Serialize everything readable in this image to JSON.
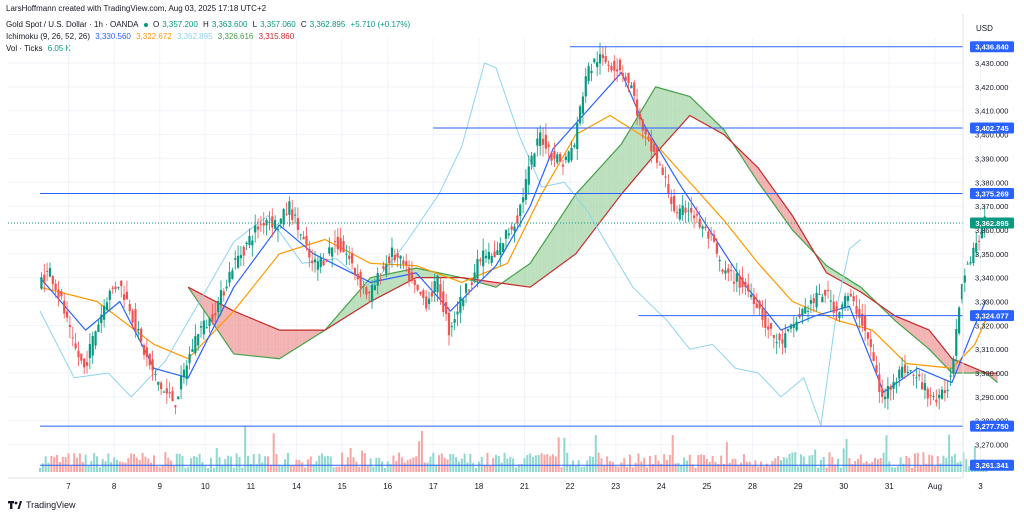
{
  "header": {
    "credit": "LarsHoffmann created with TradingView.com, Aug 03, 2025 17:18 UTC+2",
    "symbol": "Gold Spot / U.S. Dollar · 1h · OANDA",
    "ohlc": {
      "o_label": "O",
      "o": "3,357.200",
      "h_label": "H",
      "h": "3,363.600",
      "l_label": "L",
      "l": "3,357.060",
      "c_label": "C",
      "c": "3,362.895",
      "change": "+5.710 (+0.17%)"
    },
    "ichimoku": {
      "label": "Ichimoku (9, 26, 52, 26)",
      "v1": "3,330.560",
      "v2": "3,322.672",
      "v3": "3,362.895",
      "v4": "3,326.616",
      "v5": "3,315.860"
    },
    "volume": {
      "label": "Vol · Ticks",
      "value": "6.05 K"
    },
    "currency": "USD",
    "brand": "TradingView"
  },
  "colors": {
    "up": "#089981",
    "down": "#ef5350",
    "tenkan": "#2962ff",
    "kijun": "#ff9800",
    "chikou": "#8fd4ec",
    "span_a": "#43a047",
    "span_b": "#c62828",
    "cloud_up": "#a5d6a7",
    "cloud_down": "#ef9a9a",
    "level": "#2962ff",
    "vol_up": "#8ed8cf",
    "vol_down": "#f7a6a4",
    "grid": "#f0f3fa"
  },
  "chart_data": {
    "type": "candlestick",
    "instrument": "Gold Spot / U.S. Dollar",
    "timeframe": "1h",
    "y_axis": {
      "ticks": [
        3270,
        3280,
        3290,
        3300,
        3310,
        3320,
        3330,
        3340,
        3350,
        3360,
        3370,
        3380,
        3390,
        3400,
        3410,
        3420,
        3430
      ],
      "range": [
        3258.5,
        3440.5
      ]
    },
    "x_axis": {
      "ticks": [
        {
          "label": "7",
          "slot": 5
        },
        {
          "label": "8",
          "slot": 13
        },
        {
          "label": "9",
          "slot": 21
        },
        {
          "label": "10",
          "slot": 29
        },
        {
          "label": "11",
          "slot": 37
        },
        {
          "label": "14",
          "slot": 45
        },
        {
          "label": "15",
          "slot": 53
        },
        {
          "label": "16",
          "slot": 61
        },
        {
          "label": "17",
          "slot": 69
        },
        {
          "label": "18",
          "slot": 77
        },
        {
          "label": "21",
          "slot": 85
        },
        {
          "label": "22",
          "slot": 93
        },
        {
          "label": "23",
          "slot": 101
        },
        {
          "label": "24",
          "slot": 109
        },
        {
          "label": "25",
          "slot": 117
        },
        {
          "label": "28",
          "slot": 125
        },
        {
          "label": "29",
          "slot": 133
        },
        {
          "label": "30",
          "slot": 141
        },
        {
          "label": "31",
          "slot": 149
        },
        {
          "label": "Aug",
          "slot": 157
        },
        {
          "label": "3",
          "slot": 165
        }
      ]
    },
    "close_path": [
      [
        0,
        3338
      ],
      [
        2,
        3343
      ],
      [
        4,
        3330
      ],
      [
        6,
        3312
      ],
      [
        8,
        3302
      ],
      [
        10,
        3318
      ],
      [
        12,
        3332
      ],
      [
        14,
        3338
      ],
      [
        16,
        3328
      ],
      [
        18,
        3312
      ],
      [
        20,
        3300
      ],
      [
        22,
        3292
      ],
      [
        24,
        3288
      ],
      [
        26,
        3304
      ],
      [
        28,
        3318
      ],
      [
        30,
        3322
      ],
      [
        32,
        3332
      ],
      [
        34,
        3345
      ],
      [
        36,
        3352
      ],
      [
        38,
        3360
      ],
      [
        40,
        3365
      ],
      [
        42,
        3362
      ],
      [
        44,
        3370
      ],
      [
        46,
        3358
      ],
      [
        48,
        3345
      ],
      [
        50,
        3348
      ],
      [
        52,
        3355
      ],
      [
        54,
        3350
      ],
      [
        56,
        3340
      ],
      [
        58,
        3332
      ],
      [
        60,
        3342
      ],
      [
        62,
        3350
      ],
      [
        64,
        3345
      ],
      [
        66,
        3335
      ],
      [
        68,
        3330
      ],
      [
        70,
        3338
      ],
      [
        72,
        3318
      ],
      [
        74,
        3330
      ],
      [
        76,
        3340
      ],
      [
        78,
        3350
      ],
      [
        80,
        3348
      ],
      [
        82,
        3358
      ],
      [
        84,
        3365
      ],
      [
        86,
        3385
      ],
      [
        88,
        3400
      ],
      [
        90,
        3392
      ],
      [
        92,
        3388
      ],
      [
        94,
        3396
      ],
      [
        96,
        3425
      ],
      [
        98,
        3432
      ],
      [
        100,
        3430
      ],
      [
        102,
        3428
      ],
      [
        104,
        3420
      ],
      [
        106,
        3400
      ],
      [
        108,
        3392
      ],
      [
        110,
        3380
      ],
      [
        112,
        3365
      ],
      [
        114,
        3370
      ],
      [
        116,
        3362
      ],
      [
        118,
        3356
      ],
      [
        120,
        3342
      ],
      [
        122,
        3340
      ],
      [
        124,
        3336
      ],
      [
        126,
        3330
      ],
      [
        128,
        3318
      ],
      [
        130,
        3312
      ],
      [
        132,
        3318
      ],
      [
        134,
        3326
      ],
      [
        136,
        3330
      ],
      [
        138,
        3334
      ],
      [
        140,
        3326
      ],
      [
        142,
        3332
      ],
      [
        144,
        3325
      ],
      [
        146,
        3310
      ],
      [
        148,
        3288
      ],
      [
        150,
        3298
      ],
      [
        152,
        3302
      ],
      [
        154,
        3298
      ],
      [
        156,
        3292
      ],
      [
        158,
        3288
      ],
      [
        160,
        3298
      ],
      [
        162,
        3340
      ],
      [
        164,
        3352
      ],
      [
        166,
        3362.895
      ]
    ],
    "tenkan_path": [
      [
        0,
        3340
      ],
      [
        8,
        3318
      ],
      [
        14,
        3330
      ],
      [
        20,
        3302
      ],
      [
        26,
        3298
      ],
      [
        34,
        3336
      ],
      [
        42,
        3362
      ],
      [
        48,
        3350
      ],
      [
        58,
        3338
      ],
      [
        66,
        3342
      ],
      [
        72,
        3326
      ],
      [
        80,
        3345
      ],
      [
        86,
        3370
      ],
      [
        90,
        3394
      ],
      [
        96,
        3410
      ],
      [
        102,
        3426
      ],
      [
        106,
        3404
      ],
      [
        112,
        3380
      ],
      [
        118,
        3358
      ],
      [
        124,
        3336
      ],
      [
        130,
        3318
      ],
      [
        136,
        3324
      ],
      [
        142,
        3328
      ],
      [
        148,
        3292
      ],
      [
        154,
        3302
      ],
      [
        160,
        3296
      ],
      [
        164,
        3320
      ],
      [
        166,
        3330.56
      ]
    ],
    "kijun_path": [
      [
        0,
        3336
      ],
      [
        10,
        3330
      ],
      [
        20,
        3312
      ],
      [
        26,
        3306
      ],
      [
        34,
        3326
      ],
      [
        42,
        3350
      ],
      [
        50,
        3356
      ],
      [
        58,
        3346
      ],
      [
        66,
        3345
      ],
      [
        74,
        3338
      ],
      [
        82,
        3346
      ],
      [
        88,
        3375
      ],
      [
        94,
        3400
      ],
      [
        100,
        3408
      ],
      [
        108,
        3396
      ],
      [
        114,
        3380
      ],
      [
        120,
        3364
      ],
      [
        126,
        3346
      ],
      [
        132,
        3330
      ],
      [
        140,
        3322
      ],
      [
        146,
        3318
      ],
      [
        152,
        3304
      ],
      [
        160,
        3302
      ],
      [
        164,
        3312
      ],
      [
        166,
        3322.672
      ]
    ],
    "chikou_path": [
      [
        0,
        3326
      ],
      [
        6,
        3298
      ],
      [
        12,
        3300
      ],
      [
        16,
        3290
      ],
      [
        22,
        3305
      ],
      [
        28,
        3330
      ],
      [
        34,
        3355
      ],
      [
        40,
        3366
      ],
      [
        46,
        3346
      ],
      [
        52,
        3348
      ],
      [
        58,
        3336
      ],
      [
        64,
        3354
      ],
      [
        70,
        3375
      ],
      [
        74,
        3395
      ],
      [
        78,
        3430
      ],
      [
        80,
        3428
      ],
      [
        84,
        3400
      ],
      [
        88,
        3378
      ],
      [
        92,
        3380
      ],
      [
        96,
        3368
      ],
      [
        100,
        3352
      ],
      [
        104,
        3336
      ],
      [
        110,
        3322
      ],
      [
        114,
        3310
      ],
      [
        118,
        3312
      ],
      [
        122,
        3302
      ],
      [
        126,
        3300
      ],
      [
        130,
        3290
      ],
      [
        134,
        3298
      ],
      [
        137,
        3278
      ],
      [
        140,
        3330
      ],
      [
        142,
        3352
      ],
      [
        144,
        3356
      ]
    ],
    "span_a_path": [
      [
        26,
        3336
      ],
      [
        34,
        3308
      ],
      [
        42,
        3306
      ],
      [
        50,
        3318
      ],
      [
        58,
        3340
      ],
      [
        66,
        3344
      ],
      [
        74,
        3340
      ],
      [
        80,
        3336
      ],
      [
        86,
        3346
      ],
      [
        94,
        3375
      ],
      [
        102,
        3396
      ],
      [
        108,
        3420
      ],
      [
        114,
        3416
      ],
      [
        120,
        3402
      ],
      [
        126,
        3380
      ],
      [
        132,
        3360
      ],
      [
        138,
        3345
      ],
      [
        144,
        3336
      ],
      [
        150,
        3322
      ],
      [
        156,
        3310
      ],
      [
        160,
        3300
      ],
      [
        166,
        3300
      ],
      [
        168,
        3296
      ]
    ],
    "span_b_path": [
      [
        26,
        3336
      ],
      [
        34,
        3326
      ],
      [
        42,
        3318
      ],
      [
        50,
        3318
      ],
      [
        58,
        3330
      ],
      [
        66,
        3340
      ],
      [
        74,
        3340
      ],
      [
        80,
        3338
      ],
      [
        86,
        3336
      ],
      [
        94,
        3350
      ],
      [
        102,
        3375
      ],
      [
        108,
        3392
      ],
      [
        114,
        3408
      ],
      [
        120,
        3400
      ],
      [
        126,
        3386
      ],
      [
        132,
        3366
      ],
      [
        138,
        3342
      ],
      [
        144,
        3334
      ],
      [
        150,
        3324
      ],
      [
        156,
        3318
      ],
      [
        160,
        3306
      ],
      [
        166,
        3300
      ],
      [
        168,
        3300
      ]
    ],
    "horizontal_levels": [
      {
        "value": 3436.84,
        "label": "3,436.840",
        "from_slot": 93
      },
      {
        "value": 3402.745,
        "label": "3,402.745",
        "from_slot": 69
      },
      {
        "value": 3375.269,
        "label": "3,375.269",
        "from_slot": 0
      },
      {
        "value": 3324.077,
        "label": "3,324.077",
        "from_slot": 105
      },
      {
        "value": 3277.75,
        "label": "3,277.750",
        "from_slot": 0
      },
      {
        "value": 3261.341,
        "label": "3,261.341",
        "from_slot": 0
      }
    ],
    "last_price": {
      "value": 3362.895,
      "label": "3,362.895"
    },
    "volume_note": "Ticks volume histogram along bottom band"
  }
}
